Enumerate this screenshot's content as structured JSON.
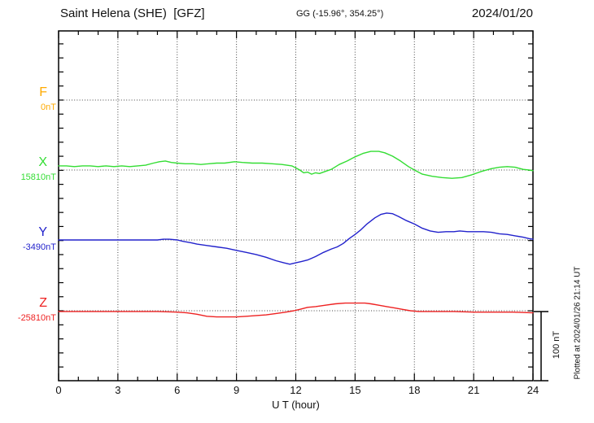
{
  "header": {
    "title": "Saint Helena (SHE)  [GFZ]",
    "coordinates": "GG (-15.96°, 354.25°)",
    "date": "2024/01/20"
  },
  "side": {
    "scale_label": "100 nT",
    "plotted_note": "Plotted at 2024/01/26 21:14 UT"
  },
  "components": [
    {
      "name": "F",
      "baseline_label": "0nT",
      "color": "#ffaa00"
    },
    {
      "name": "X",
      "baseline_label": "15810nT",
      "color": "#33dd33"
    },
    {
      "name": "Y",
      "baseline_label": "-3490nT",
      "color": "#2222cc"
    },
    {
      "name": "Z",
      "baseline_label": "-25810nT",
      "color": "#ee2222"
    }
  ],
  "chart_data": {
    "type": "line",
    "title": "Saint Helena (SHE) [GFZ] magnetogram 2024/01/20",
    "xlabel": "U T (hour)",
    "ylabel": "",
    "x_range": [
      0,
      24
    ],
    "x_ticks": [
      0,
      3,
      6,
      9,
      12,
      15,
      18,
      21,
      24
    ],
    "x_minor_tick_hours": 1,
    "y_tick_nT": 20,
    "scale_bar_nT": 100,
    "grid": "dotted vertical every 3h, dotted horizontal at each component baseline",
    "series": [
      {
        "name": "F",
        "baseline_nT": 0,
        "color": "#ffaa00",
        "units": "nT",
        "points": []
      },
      {
        "name": "X",
        "baseline_nT": 15810,
        "color": "#33dd33",
        "units": "nT",
        "points": [
          [
            0,
            6
          ],
          [
            0.4,
            6
          ],
          [
            0.8,
            5
          ],
          [
            1.2,
            6
          ],
          [
            1.6,
            6
          ],
          [
            2,
            5
          ],
          [
            2.4,
            6
          ],
          [
            2.8,
            5
          ],
          [
            3.2,
            6
          ],
          [
            3.6,
            5
          ],
          [
            4,
            6
          ],
          [
            4.4,
            7
          ],
          [
            4.8,
            10
          ],
          [
            5.1,
            12
          ],
          [
            5.4,
            13
          ],
          [
            5.7,
            11
          ],
          [
            6,
            10
          ],
          [
            6.4,
            9
          ],
          [
            6.8,
            9
          ],
          [
            7.2,
            8
          ],
          [
            7.6,
            9
          ],
          [
            8,
            10
          ],
          [
            8.4,
            10
          ],
          [
            8.9,
            12
          ],
          [
            9.3,
            11
          ],
          [
            9.8,
            10
          ],
          [
            10.3,
            10
          ],
          [
            10.8,
            9
          ],
          [
            11.3,
            8
          ],
          [
            11.8,
            6
          ],
          [
            12,
            3
          ],
          [
            12.2,
            0
          ],
          [
            12.4,
            -4
          ],
          [
            12.6,
            -3
          ],
          [
            12.8,
            -6
          ],
          [
            13,
            -4
          ],
          [
            13.2,
            -5
          ],
          [
            13.5,
            -2
          ],
          [
            13.8,
            1
          ],
          [
            14.2,
            8
          ],
          [
            14.6,
            13
          ],
          [
            15,
            19
          ],
          [
            15.4,
            24
          ],
          [
            15.8,
            27
          ],
          [
            16.2,
            27
          ],
          [
            16.5,
            25
          ],
          [
            16.9,
            20
          ],
          [
            17.3,
            13
          ],
          [
            17.7,
            5
          ],
          [
            18,
            0
          ],
          [
            18.4,
            -6
          ],
          [
            18.9,
            -9
          ],
          [
            19.4,
            -11
          ],
          [
            19.9,
            -12
          ],
          [
            20.4,
            -11
          ],
          [
            20.9,
            -7
          ],
          [
            21.4,
            -2
          ],
          [
            21.9,
            2
          ],
          [
            22.3,
            4
          ],
          [
            22.7,
            5
          ],
          [
            23.1,
            4
          ],
          [
            23.5,
            1
          ],
          [
            23.8,
            0
          ],
          [
            24,
            -1
          ]
        ]
      },
      {
        "name": "Y",
        "baseline_nT": -3490,
        "color": "#2222cc",
        "units": "nT",
        "points": [
          [
            0,
            0
          ],
          [
            0.5,
            0
          ],
          [
            1,
            0
          ],
          [
            1.5,
            0
          ],
          [
            2,
            0
          ],
          [
            2.5,
            0
          ],
          [
            3,
            0
          ],
          [
            3.5,
            0
          ],
          [
            4,
            0
          ],
          [
            4.5,
            0
          ],
          [
            5,
            0
          ],
          [
            5.3,
            1
          ],
          [
            5.6,
            1
          ],
          [
            6,
            0
          ],
          [
            6.3,
            -2
          ],
          [
            6.7,
            -4
          ],
          [
            7,
            -6
          ],
          [
            7.5,
            -8
          ],
          [
            8,
            -10
          ],
          [
            8.5,
            -12
          ],
          [
            9,
            -15
          ],
          [
            9.5,
            -18
          ],
          [
            10,
            -21
          ],
          [
            10.5,
            -25
          ],
          [
            11,
            -30
          ],
          [
            11.4,
            -33
          ],
          [
            11.7,
            -35
          ],
          [
            12,
            -33
          ],
          [
            12.3,
            -31
          ],
          [
            12.6,
            -29
          ],
          [
            13,
            -24
          ],
          [
            13.4,
            -18
          ],
          [
            13.8,
            -13
          ],
          [
            14.1,
            -10
          ],
          [
            14.4,
            -5
          ],
          [
            14.7,
            2
          ],
          [
            15,
            8
          ],
          [
            15.3,
            15
          ],
          [
            15.6,
            23
          ],
          [
            16,
            32
          ],
          [
            16.3,
            37
          ],
          [
            16.6,
            39
          ],
          [
            16.9,
            38
          ],
          [
            17.2,
            34
          ],
          [
            17.6,
            28
          ],
          [
            18,
            23
          ],
          [
            18.4,
            17
          ],
          [
            18.8,
            13
          ],
          [
            19.2,
            11
          ],
          [
            19.6,
            12
          ],
          [
            20,
            12
          ],
          [
            20.3,
            13
          ],
          [
            20.7,
            12
          ],
          [
            21.1,
            12
          ],
          [
            21.5,
            12
          ],
          [
            21.9,
            11
          ],
          [
            22.3,
            9
          ],
          [
            22.7,
            8
          ],
          [
            23.1,
            6
          ],
          [
            23.5,
            4
          ],
          [
            23.8,
            2
          ],
          [
            24,
            1
          ]
        ]
      },
      {
        "name": "Z",
        "baseline_nT": -25810,
        "color": "#ee2222",
        "units": "nT",
        "points": [
          [
            0,
            -1
          ],
          [
            1,
            -1
          ],
          [
            2,
            -1
          ],
          [
            3,
            -1
          ],
          [
            4,
            -1
          ],
          [
            5,
            -1
          ],
          [
            6,
            -2
          ],
          [
            6.5,
            -3
          ],
          [
            7,
            -5
          ],
          [
            7.5,
            -8
          ],
          [
            8,
            -9
          ],
          [
            8.5,
            -9
          ],
          [
            9,
            -9
          ],
          [
            9.5,
            -8
          ],
          [
            10,
            -7
          ],
          [
            10.5,
            -6
          ],
          [
            11,
            -4
          ],
          [
            11.5,
            -2
          ],
          [
            11.9,
            0
          ],
          [
            12.2,
            2
          ],
          [
            12.6,
            5
          ],
          [
            13,
            6
          ],
          [
            13.5,
            8
          ],
          [
            14,
            10
          ],
          [
            14.5,
            11
          ],
          [
            15,
            11
          ],
          [
            15.5,
            11
          ],
          [
            15.8,
            10
          ],
          [
            16.2,
            8
          ],
          [
            16.6,
            6
          ],
          [
            17,
            4
          ],
          [
            17.4,
            2
          ],
          [
            17.8,
            0
          ],
          [
            18.2,
            -1
          ],
          [
            19,
            -1
          ],
          [
            20,
            -1
          ],
          [
            21,
            -2
          ],
          [
            22,
            -2
          ],
          [
            23,
            -2
          ],
          [
            24,
            -3
          ]
        ]
      }
    ]
  }
}
